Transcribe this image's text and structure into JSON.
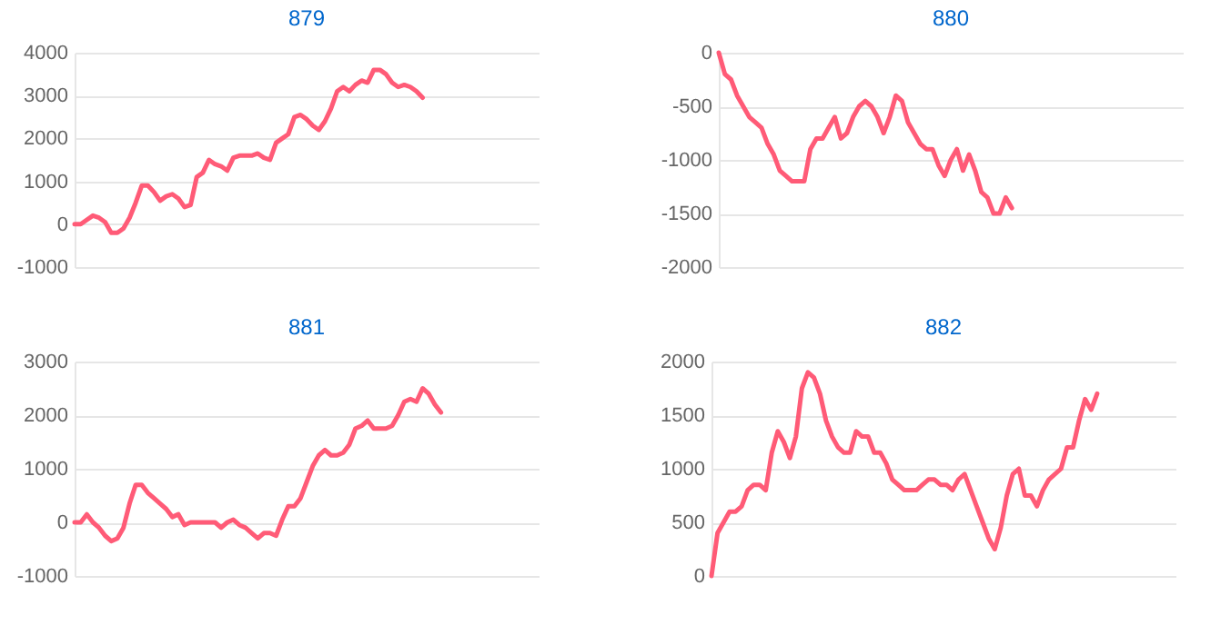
{
  "chart_data": [
    {
      "type": "line",
      "title": "879",
      "categories": [
        null,
        null,
        null,
        null,
        null,
        null,
        null,
        null,
        null,
        null,
        null,
        null,
        null,
        null,
        null,
        null,
        null,
        null,
        null,
        null,
        null,
        null,
        null,
        null,
        null,
        null,
        null,
        null,
        null,
        null,
        null,
        null,
        null,
        null,
        null,
        null,
        null,
        null,
        null,
        null,
        null,
        null,
        null,
        null,
        null,
        null,
        null,
        null,
        null,
        null,
        null,
        null,
        null,
        null,
        null,
        null,
        null,
        null,
        null,
        null,
        null,
        null,
        null,
        null,
        null,
        null,
        null,
        null,
        null,
        null,
        null,
        null,
        null,
        null,
        null,
        null,
        null
      ],
      "series": [
        {
          "color": "#ff5b77",
          "values": [
            0,
            0,
            100,
            200,
            150,
            50,
            -200,
            -200,
            -100,
            150,
            500,
            900,
            900,
            750,
            550,
            650,
            700,
            600,
            400,
            450,
            1100,
            1200,
            1500,
            1400,
            1350,
            1250,
            1550,
            1600,
            1600,
            1600,
            1650,
            1550,
            1500,
            1900,
            2000,
            2100,
            2500,
            2550,
            2450,
            2300,
            2200,
            2400,
            2700,
            3100,
            3200,
            3100,
            3250,
            3350,
            3300,
            3600,
            3600,
            3500,
            3300,
            3200,
            3250,
            3200,
            3100,
            2950,
            null,
            null,
            null,
            null,
            null,
            null,
            null,
            null,
            null,
            null,
            null,
            null,
            null,
            null,
            null,
            null,
            null,
            null,
            null
          ]
        }
      ],
      "ylim": [
        -1000,
        4000
      ],
      "yticks": [
        -1000,
        0,
        1000,
        2000,
        3000,
        4000
      ],
      "grid": "y",
      "tick_labels": "y",
      "marker": "none",
      "line_style": "solid"
    },
    {
      "type": "line",
      "title": "880",
      "categories": [
        null,
        null,
        null,
        null,
        null,
        null,
        null,
        null,
        null,
        null,
        null,
        null,
        null,
        null,
        null,
        null,
        null,
        null,
        null,
        null,
        null,
        null,
        null,
        null,
        null,
        null,
        null,
        null,
        null,
        null,
        null,
        null,
        null,
        null,
        null,
        null,
        null,
        null,
        null,
        null,
        null,
        null,
        null,
        null,
        null,
        null,
        null,
        null,
        null,
        null,
        null,
        null,
        null,
        null,
        null,
        null,
        null,
        null,
        null,
        null,
        null,
        null,
        null,
        null,
        null,
        null,
        null,
        null,
        null,
        null,
        null,
        null,
        null,
        null,
        null,
        null,
        null
      ],
      "series": [
        {
          "color": "#ff5b77",
          "values": [
            0,
            -200,
            -250,
            -400,
            -500,
            -600,
            -650,
            -700,
            -850,
            -950,
            -1100,
            -1150,
            -1200,
            -1200,
            -1200,
            -900,
            -800,
            -800,
            -700,
            -600,
            -800,
            -750,
            -600,
            -500,
            -450,
            -500,
            -600,
            -750,
            -600,
            -400,
            -450,
            -650,
            -750,
            -850,
            -900,
            -900,
            -1050,
            -1150,
            -1000,
            -900,
            -1100,
            -950,
            -1100,
            -1300,
            -1350,
            -1500,
            -1500,
            -1350,
            -1450,
            null,
            null,
            null,
            null,
            null,
            null,
            null,
            null,
            null,
            null,
            null,
            null,
            null,
            null,
            null,
            null,
            null,
            null,
            null,
            null,
            null,
            null,
            null,
            null,
            null,
            null,
            null,
            null
          ]
        }
      ],
      "ylim": [
        -2000,
        0
      ],
      "yticks": [
        -2000,
        -1500,
        -1000,
        -500,
        0
      ],
      "grid": "y",
      "tick_labels": "y",
      "marker": "none",
      "line_style": "solid"
    },
    {
      "type": "line",
      "title": "881",
      "categories": [
        null,
        null,
        null,
        null,
        null,
        null,
        null,
        null,
        null,
        null,
        null,
        null,
        null,
        null,
        null,
        null,
        null,
        null,
        null,
        null,
        null,
        null,
        null,
        null,
        null,
        null,
        null,
        null,
        null,
        null,
        null,
        null,
        null,
        null,
        null,
        null,
        null,
        null,
        null,
        null,
        null,
        null,
        null,
        null,
        null,
        null,
        null,
        null,
        null,
        null,
        null,
        null,
        null,
        null,
        null,
        null,
        null,
        null,
        null,
        null,
        null,
        null,
        null,
        null,
        null,
        null,
        null,
        null,
        null,
        null,
        null,
        null,
        null,
        null,
        null,
        null,
        null
      ],
      "series": [
        {
          "color": "#ff5b77",
          "values": [
            0,
            0,
            150,
            0,
            -100,
            -250,
            -350,
            -300,
            -100,
            350,
            700,
            700,
            550,
            450,
            350,
            250,
            100,
            150,
            -50,
            0,
            0,
            0,
            0,
            0,
            -100,
            0,
            50,
            -50,
            -100,
            -200,
            -300,
            -200,
            -200,
            -250,
            50,
            300,
            300,
            450,
            750,
            1050,
            1250,
            1350,
            1250,
            1250,
            1300,
            1450,
            1750,
            1800,
            1900,
            1750,
            1750,
            1750,
            1800,
            2000,
            2250,
            2300,
            2250,
            2500,
            2400,
            2200,
            2050,
            null,
            null,
            null,
            null,
            null,
            null,
            null,
            null,
            null,
            null,
            null,
            null,
            null,
            null,
            null,
            null
          ]
        }
      ],
      "ylim": [
        -1000,
        3000
      ],
      "yticks": [
        -1000,
        0,
        1000,
        2000,
        3000
      ],
      "grid": "y",
      "tick_labels": "y",
      "marker": "none",
      "line_style": "solid"
    },
    {
      "type": "line",
      "title": "882",
      "categories": [
        null,
        null,
        null,
        null,
        null,
        null,
        null,
        null,
        null,
        null,
        null,
        null,
        null,
        null,
        null,
        null,
        null,
        null,
        null,
        null,
        null,
        null,
        null,
        null,
        null,
        null,
        null,
        null,
        null,
        null,
        null,
        null,
        null,
        null,
        null,
        null,
        null,
        null,
        null,
        null,
        null,
        null,
        null,
        null,
        null,
        null,
        null,
        null,
        null,
        null,
        null,
        null,
        null,
        null,
        null,
        null,
        null,
        null,
        null,
        null,
        null,
        null,
        null,
        null,
        null,
        null,
        null,
        null,
        null,
        null,
        null,
        null,
        null,
        null,
        null,
        null,
        null,
        null
      ],
      "series": [
        {
          "color": "#ff5b77",
          "values": [
            0,
            400,
            500,
            600,
            600,
            650,
            800,
            850,
            850,
            800,
            1150,
            1350,
            1250,
            1100,
            1300,
            1750,
            1900,
            1850,
            1700,
            1450,
            1300,
            1200,
            1150,
            1150,
            1350,
            1300,
            1300,
            1150,
            1150,
            1050,
            900,
            850,
            800,
            800,
            800,
            850,
            900,
            900,
            850,
            850,
            800,
            900,
            950,
            800,
            650,
            500,
            350,
            250,
            450,
            750,
            950,
            1000,
            750,
            750,
            650,
            800,
            900,
            950,
            1000,
            1200,
            1200,
            1450,
            1650,
            1550,
            1700,
            null,
            null,
            null,
            null,
            null,
            null,
            null,
            null,
            null,
            null,
            null,
            null,
            null
          ]
        }
      ],
      "ylim": [
        0,
        2000
      ],
      "yticks": [
        0,
        500,
        1000,
        1500,
        2000
      ],
      "grid": "y",
      "tick_labels": "y",
      "marker": "none",
      "line_style": "solid"
    }
  ]
}
